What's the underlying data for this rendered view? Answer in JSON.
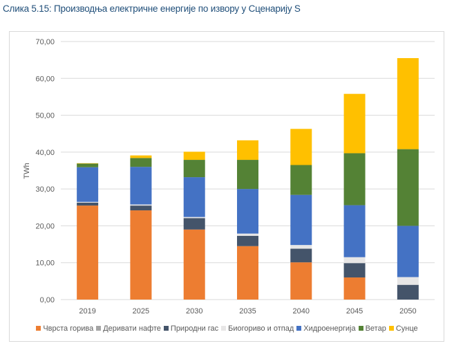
{
  "figure": {
    "title": "Слика 5.15: Производња електричне енергије по извору у Сценарију S"
  },
  "chart_data": {
    "type": "bar",
    "stacked": true,
    "title": "",
    "xlabel": "",
    "ylabel": "TWh",
    "ylim": [
      0,
      70
    ],
    "yticks": [
      0,
      10,
      20,
      30,
      40,
      50,
      60,
      70
    ],
    "ytick_labels": [
      "0,00",
      "10,00",
      "20,00",
      "30,00",
      "40,00",
      "50,00",
      "60,00",
      "70,00"
    ],
    "grid": true,
    "legend_position": "bottom",
    "categories": [
      "2019",
      "2025",
      "2030",
      "2035",
      "2040",
      "2045",
      "2050"
    ],
    "series": [
      {
        "name": "Чврста горива",
        "color": "#ed7d31",
        "values": [
          25.5,
          24.2,
          19.0,
          14.5,
          10.1,
          6.0,
          0.0
        ]
      },
      {
        "name": "Деривати нафте",
        "color": "#a5a5a5",
        "values": [
          0.0,
          0.0,
          0.0,
          0.0,
          0.0,
          0.0,
          0.0
        ]
      },
      {
        "name": "Природни гас",
        "color": "#44546a",
        "values": [
          0.8,
          1.3,
          3.1,
          2.8,
          3.7,
          3.9,
          4.0
        ]
      },
      {
        "name": "Биогориво и отпад",
        "color": "#e7e6e6",
        "values": [
          0.2,
          0.3,
          0.3,
          0.6,
          1.0,
          1.6,
          2.1
        ]
      },
      {
        "name": "Хидроенергија",
        "color": "#4472c4",
        "values": [
          9.4,
          10.2,
          10.8,
          12.1,
          13.6,
          14.1,
          13.9
        ]
      },
      {
        "name": "Ветар",
        "color": "#548235",
        "values": [
          1.0,
          2.4,
          4.7,
          7.9,
          8.1,
          14.1,
          20.8
        ]
      },
      {
        "name": "Сунце",
        "color": "#ffc000",
        "values": [
          0.1,
          0.7,
          2.2,
          5.3,
          9.8,
          16.1,
          24.7
        ]
      }
    ]
  }
}
